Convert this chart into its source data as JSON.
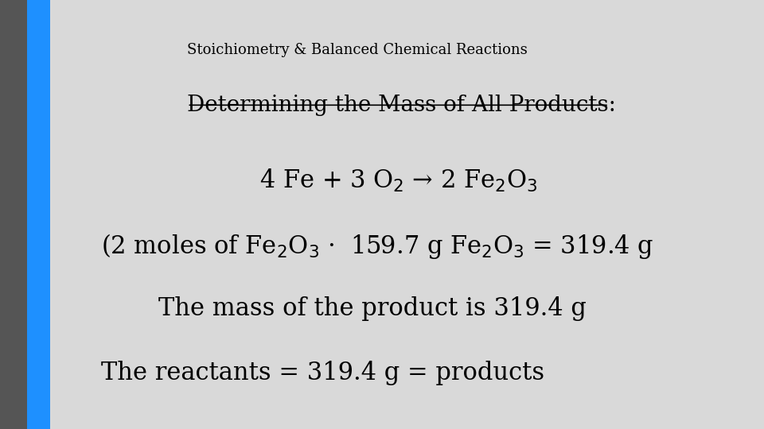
{
  "title": "Stoichiometry & Balanced Chemical Reactions",
  "subtitle": "Determining the Mass of All Products:",
  "line1": "4 Fe + 3 O$_2$ → 2 Fe$_2$O$_3$",
  "line2": "(2 moles of Fe$_2$O$_3$ ·  159.7 g Fe$_2$O$_3$ = 319.4 g",
  "line3": "The mass of the product is 319.4 g",
  "line4": "The reactants = 319.4 g = products",
  "bg_color": "#d9d9d9",
  "text_color": "#000000",
  "title_fontsize": 13,
  "subtitle_fontsize": 20,
  "body_fontsize": 22,
  "blue_bar_color": "#1e90ff",
  "gray_bar_color": "#555555"
}
